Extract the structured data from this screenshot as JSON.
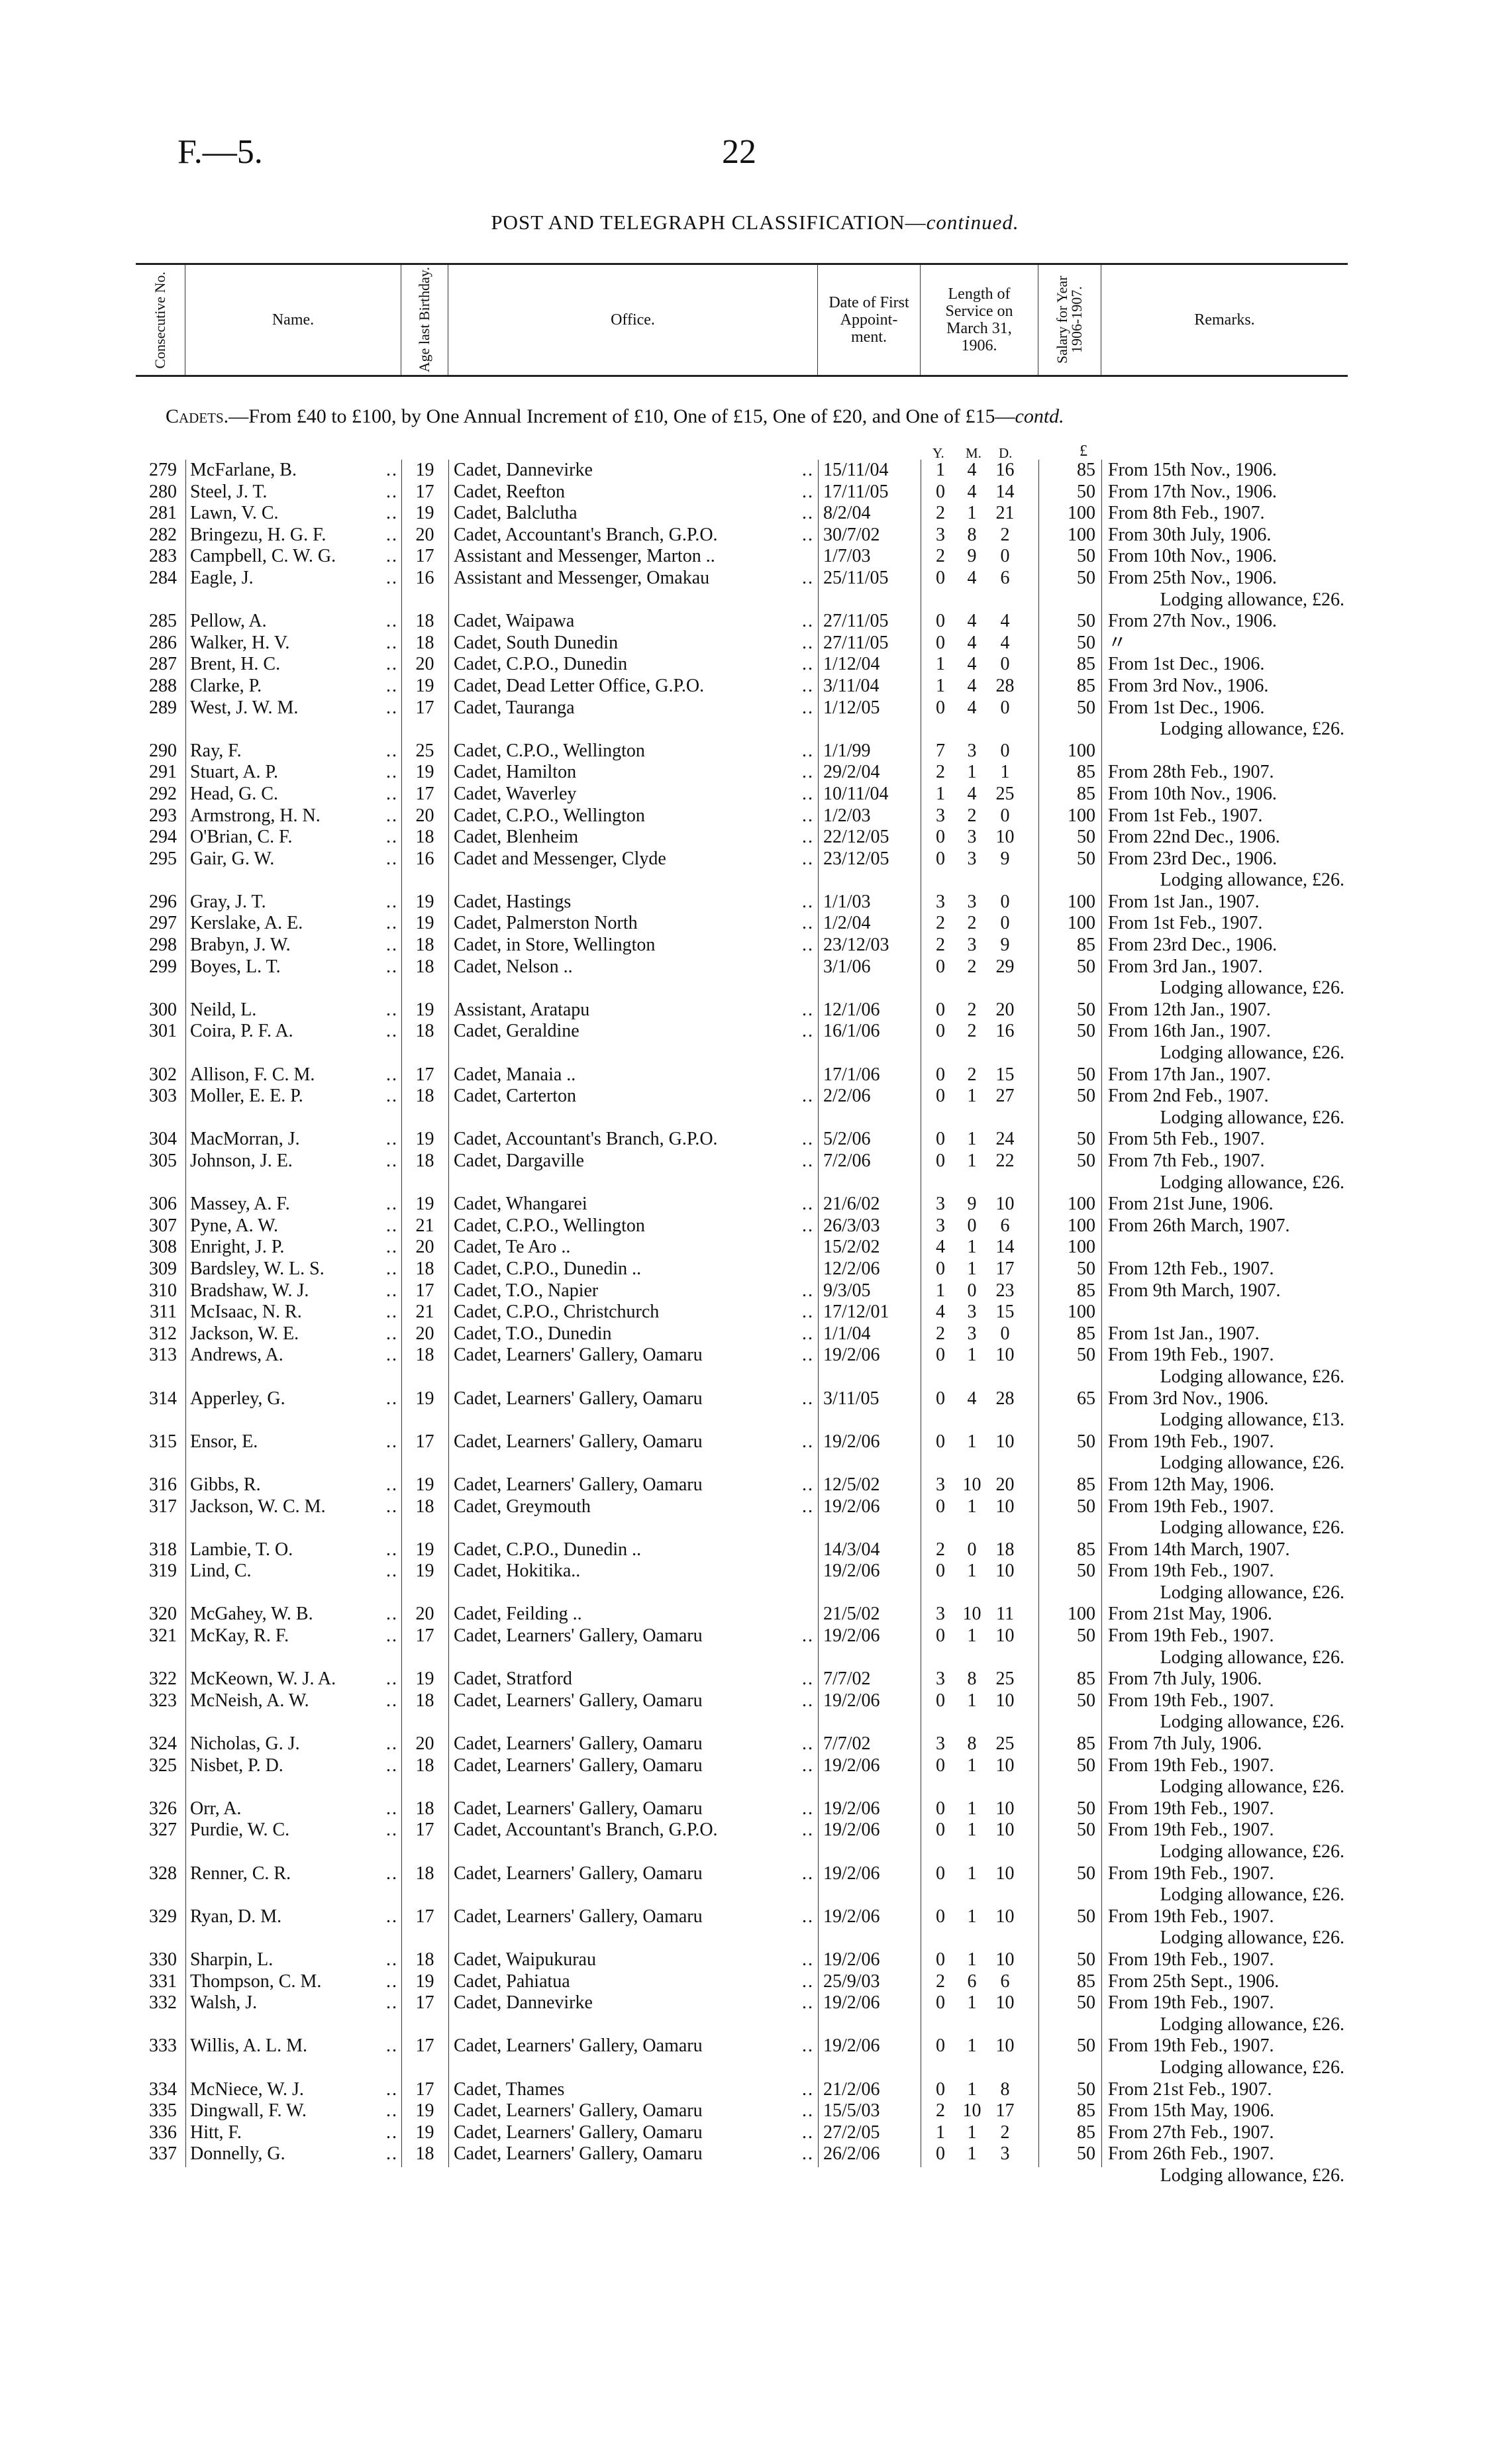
{
  "page": {
    "ref": "F.—5.",
    "number": "22"
  },
  "title": {
    "main": "POST AND TELEGRAPH CLASSIFICATION—",
    "suffix": "continued."
  },
  "columns": {
    "no": "Consecutive No.",
    "name": "Name.",
    "age": "Age last Birthday.",
    "office": "Office.",
    "date": "Date of First Appoint-ment.",
    "length": "Length of Service on March 31, 1906.",
    "salary": "Salary for Year 1906-1907.",
    "remarks": "Remarks."
  },
  "section": {
    "label": "Cadets.",
    "text": "—From £40 to £100, by One Annual Increment of £10, One of £15, One of £20, and One of £15—",
    "suffix": "contd."
  },
  "units": {
    "y": "Y.",
    "m": "M.",
    "d": "D.",
    "pound": "£"
  },
  "rows": [
    {
      "no": "279",
      "name": "McFarlane, B.",
      "age": "19",
      "office": "Cadet, Dannevirke",
      "date": "15/11/04",
      "y": "1",
      "m": "4",
      "d": "16",
      "salary": "85",
      "remarks": "From 15th Nov., 1906."
    },
    {
      "no": "280",
      "name": "Steel, J. T.",
      "age": "17",
      "office": "Cadet, Reefton",
      "date": "17/11/05",
      "y": "0",
      "m": "4",
      "d": "14",
      "salary": "50",
      "remarks": "From 17th Nov., 1906."
    },
    {
      "no": "281",
      "name": "Lawn, V. C.",
      "age": "19",
      "office": "Cadet, Balclutha",
      "date": "8/2/04",
      "y": "2",
      "m": "1",
      "d": "21",
      "salary": "100",
      "remarks": "From 8th Feb., 1907."
    },
    {
      "no": "282",
      "name": "Bringezu, H. G. F.",
      "age": "20",
      "office": "Cadet, Accountant's Branch, G.P.O.",
      "date": "30/7/02",
      "y": "3",
      "m": "8",
      "d": "2",
      "salary": "100",
      "remarks": "From 30th July, 1906."
    },
    {
      "no": "283",
      "name": "Campbell, C. W. G.",
      "age": "17",
      "office": "Assistant and Messenger, Marton ..",
      "date": "1/7/03",
      "y": "2",
      "m": "9",
      "d": "0",
      "salary": "50",
      "remarks": "From 10th Nov., 1906."
    },
    {
      "no": "284",
      "name": "Eagle, J.",
      "age": "16",
      "office": "Assistant and Messenger, Omakau",
      "date": "25/11/05",
      "y": "0",
      "m": "4",
      "d": "6",
      "salary": "50",
      "remarks": "From 25th Nov., 1906.",
      "lodging": "Lodging allowance, £26."
    },
    {
      "no": "285",
      "name": "Pellow, A.",
      "age": "18",
      "office": "Cadet, Waipawa",
      "date": "27/11/05",
      "y": "0",
      "m": "4",
      "d": "4",
      "salary": "50",
      "remarks": "From 27th Nov., 1906."
    },
    {
      "no": "286",
      "name": "Walker, H. V.",
      "age": "18",
      "office": "Cadet, South Dunedin",
      "date": "27/11/05",
      "y": "0",
      "m": "4",
      "d": "4",
      "salary": "50",
      "remarks": "〃"
    },
    {
      "no": "287",
      "name": "Brent, H. C.",
      "age": "20",
      "office": "Cadet, C.P.O., Dunedin",
      "date": "1/12/04",
      "y": "1",
      "m": "4",
      "d": "0",
      "salary": "85",
      "remarks": "From 1st Dec., 1906."
    },
    {
      "no": "288",
      "name": "Clarke, P.",
      "age": "19",
      "office": "Cadet, Dead Letter Office, G.P.O.",
      "date": "3/11/04",
      "y": "1",
      "m": "4",
      "d": "28",
      "salary": "85",
      "remarks": "From 3rd Nov., 1906."
    },
    {
      "no": "289",
      "name": "West, J. W. M.",
      "age": "17",
      "office": "Cadet, Tauranga",
      "date": "1/12/05",
      "y": "0",
      "m": "4",
      "d": "0",
      "salary": "50",
      "remarks": "From 1st Dec., 1906.",
      "lodging": "Lodging allowance, £26."
    },
    {
      "no": "290",
      "name": "Ray, F.",
      "age": "25",
      "office": "Cadet, C.P.O., Wellington",
      "date": "1/1/99",
      "y": "7",
      "m": "3",
      "d": "0",
      "salary": "100",
      "remarks": ""
    },
    {
      "no": "291",
      "name": "Stuart, A. P.",
      "age": "19",
      "office": "Cadet, Hamilton",
      "date": "29/2/04",
      "y": "2",
      "m": "1",
      "d": "1",
      "salary": "85",
      "remarks": "From 28th Feb., 1907."
    },
    {
      "no": "292",
      "name": "Head, G. C.",
      "age": "17",
      "office": "Cadet, Waverley",
      "date": "10/11/04",
      "y": "1",
      "m": "4",
      "d": "25",
      "salary": "85",
      "remarks": "From 10th Nov., 1906."
    },
    {
      "no": "293",
      "name": "Armstrong, H. N.",
      "age": "20",
      "office": "Cadet, C.P.O., Wellington",
      "date": "1/2/03",
      "y": "3",
      "m": "2",
      "d": "0",
      "salary": "100",
      "remarks": "From 1st Feb., 1907."
    },
    {
      "no": "294",
      "name": "O'Brian, C. F.",
      "age": "18",
      "office": "Cadet, Blenheim",
      "date": "22/12/05",
      "y": "0",
      "m": "3",
      "d": "10",
      "salary": "50",
      "remarks": "From 22nd Dec., 1906."
    },
    {
      "no": "295",
      "name": "Gair, G. W.",
      "age": "16",
      "office": "Cadet and Messenger, Clyde",
      "date": "23/12/05",
      "y": "0",
      "m": "3",
      "d": "9",
      "salary": "50",
      "remarks": "From 23rd Dec., 1906.",
      "lodging": "Lodging allowance, £26."
    },
    {
      "no": "296",
      "name": "Gray, J. T.",
      "age": "19",
      "office": "Cadet, Hastings",
      "date": "1/1/03",
      "y": "3",
      "m": "3",
      "d": "0",
      "salary": "100",
      "remarks": "From 1st Jan., 1907."
    },
    {
      "no": "297",
      "name": "Kerslake, A. E.",
      "age": "19",
      "office": "Cadet, Palmerston North",
      "date": "1/2/04",
      "y": "2",
      "m": "2",
      "d": "0",
      "salary": "100",
      "remarks": "From 1st Feb., 1907."
    },
    {
      "no": "298",
      "name": "Brabyn, J. W.",
      "age": "18",
      "office": "Cadet, in Store, Wellington",
      "date": "23/12/03",
      "y": "2",
      "m": "3",
      "d": "9",
      "salary": "85",
      "remarks": "From 23rd Dec., 1906."
    },
    {
      "no": "299",
      "name": "Boyes, L. T.",
      "age": "18",
      "office": "Cadet, Nelson ..",
      "date": "3/1/06",
      "y": "0",
      "m": "2",
      "d": "29",
      "salary": "50",
      "remarks": "From 3rd Jan., 1907.",
      "lodging": "Lodging allowance, £26."
    },
    {
      "no": "300",
      "name": "Neild, L.",
      "age": "19",
      "office": "Assistant, Aratapu",
      "date": "12/1/06",
      "y": "0",
      "m": "2",
      "d": "20",
      "salary": "50",
      "remarks": "From 12th Jan., 1907."
    },
    {
      "no": "301",
      "name": "Coira, P. F. A.",
      "age": "18",
      "office": "Cadet, Geraldine",
      "date": "16/1/06",
      "y": "0",
      "m": "2",
      "d": "16",
      "salary": "50",
      "remarks": "From 16th Jan., 1907.",
      "lodging": "Lodging allowance, £26."
    },
    {
      "no": "302",
      "name": "Allison, F. C. M.",
      "age": "17",
      "office": "Cadet, Manaia ..",
      "date": "17/1/06",
      "y": "0",
      "m": "2",
      "d": "15",
      "salary": "50",
      "remarks": "From 17th Jan., 1907."
    },
    {
      "no": "303",
      "name": "Moller, E. E. P.",
      "age": "18",
      "office": "Cadet, Carterton",
      "date": "2/2/06",
      "y": "0",
      "m": "1",
      "d": "27",
      "salary": "50",
      "remarks": "From 2nd Feb., 1907.",
      "lodging": "Lodging allowance, £26."
    },
    {
      "no": "304",
      "name": "MacMorran, J.",
      "age": "19",
      "office": "Cadet, Accountant's Branch, G.P.O.",
      "date": "5/2/06",
      "y": "0",
      "m": "1",
      "d": "24",
      "salary": "50",
      "remarks": "From 5th Feb., 1907."
    },
    {
      "no": "305",
      "name": "Johnson, J. E.",
      "age": "18",
      "office": "Cadet, Dargaville",
      "date": "7/2/06",
      "y": "0",
      "m": "1",
      "d": "22",
      "salary": "50",
      "remarks": "From 7th Feb., 1907.",
      "lodging": "Lodging allowance, £26."
    },
    {
      "no": "306",
      "name": "Massey, A. F.",
      "age": "19",
      "office": "Cadet, Whangarei",
      "date": "21/6/02",
      "y": "3",
      "m": "9",
      "d": "10",
      "salary": "100",
      "remarks": "From 21st June, 1906."
    },
    {
      "no": "307",
      "name": "Pyne, A. W.",
      "age": "21",
      "office": "Cadet, C.P.O., Wellington",
      "date": "26/3/03",
      "y": "3",
      "m": "0",
      "d": "6",
      "salary": "100",
      "remarks": "From 26th March, 1907."
    },
    {
      "no": "308",
      "name": "Enright, J. P.",
      "age": "20",
      "office": "Cadet, Te Aro ..",
      "date": "15/2/02",
      "y": "4",
      "m": "1",
      "d": "14",
      "salary": "100",
      "remarks": ""
    },
    {
      "no": "309",
      "name": "Bardsley, W. L. S.",
      "age": "18",
      "office": "Cadet, C.P.O., Dunedin ..",
      "date": "12/2/06",
      "y": "0",
      "m": "1",
      "d": "17",
      "salary": "50",
      "remarks": "From 12th Feb., 1907."
    },
    {
      "no": "310",
      "name": "Bradshaw, W. J.",
      "age": "17",
      "office": "Cadet, T.O., Napier",
      "date": "9/3/05",
      "y": "1",
      "m": "0",
      "d": "23",
      "salary": "85",
      "remarks": "From 9th March, 1907."
    },
    {
      "no": "311",
      "name": "McIsaac, N. R.",
      "age": "21",
      "office": "Cadet, C.P.O., Christchurch",
      "date": "17/12/01",
      "y": "4",
      "m": "3",
      "d": "15",
      "salary": "100",
      "remarks": ""
    },
    {
      "no": "312",
      "name": "Jackson, W. E.",
      "age": "20",
      "office": "Cadet, T.O., Dunedin",
      "date": "1/1/04",
      "y": "2",
      "m": "3",
      "d": "0",
      "salary": "85",
      "remarks": "From 1st Jan., 1907."
    },
    {
      "no": "313",
      "name": "Andrews, A.",
      "age": "18",
      "office": "Cadet, Learners' Gallery, Oamaru",
      "date": "19/2/06",
      "y": "0",
      "m": "1",
      "d": "10",
      "salary": "50",
      "remarks": "From 19th Feb., 1907.",
      "lodging": "Lodging allowance, £26."
    },
    {
      "no": "314",
      "name": "Apperley, G.",
      "age": "19",
      "office": "Cadet, Learners' Gallery, Oamaru",
      "date": "3/11/05",
      "y": "0",
      "m": "4",
      "d": "28",
      "salary": "65",
      "remarks": "From 3rd Nov., 1906.",
      "lodging": "Lodging allowance, £13."
    },
    {
      "no": "315",
      "name": "Ensor, E.",
      "age": "17",
      "office": "Cadet, Learners' Gallery, Oamaru",
      "date": "19/2/06",
      "y": "0",
      "m": "1",
      "d": "10",
      "salary": "50",
      "remarks": "From 19th Feb., 1907.",
      "lodging": "Lodging allowance, £26."
    },
    {
      "no": "316",
      "name": "Gibbs, R.",
      "age": "19",
      "office": "Cadet, Learners' Gallery, Oamaru",
      "date": "12/5/02",
      "y": "3",
      "m": "10",
      "d": "20",
      "salary": "85",
      "remarks": "From 12th May, 1906."
    },
    {
      "no": "317",
      "name": "Jackson, W. C. M.",
      "age": "18",
      "office": "Cadet, Greymouth",
      "date": "19/2/06",
      "y": "0",
      "m": "1",
      "d": "10",
      "salary": "50",
      "remarks": "From 19th Feb., 1907.",
      "lodging": "Lodging allowance, £26."
    },
    {
      "no": "318",
      "name": "Lambie, T. O.",
      "age": "19",
      "office": "Cadet, C.P.O., Dunedin ..",
      "date": "14/3/04",
      "y": "2",
      "m": "0",
      "d": "18",
      "salary": "85",
      "remarks": "From 14th March, 1907."
    },
    {
      "no": "319",
      "name": "Lind, C.",
      "age": "19",
      "office": "Cadet, Hokitika..",
      "date": "19/2/06",
      "y": "0",
      "m": "1",
      "d": "10",
      "salary": "50",
      "remarks": "From 19th Feb., 1907.",
      "lodging": "Lodging allowance, £26."
    },
    {
      "no": "320",
      "name": "McGahey, W. B.",
      "age": "20",
      "office": "Cadet, Feilding ..",
      "date": "21/5/02",
      "y": "3",
      "m": "10",
      "d": "11",
      "salary": "100",
      "remarks": "From 21st May, 1906."
    },
    {
      "no": "321",
      "name": "McKay, R. F.",
      "age": "17",
      "office": "Cadet, Learners' Gallery, Oamaru",
      "date": "19/2/06",
      "y": "0",
      "m": "1",
      "d": "10",
      "salary": "50",
      "remarks": "From 19th Feb., 1907.",
      "lodging": "Lodging allowance, £26."
    },
    {
      "no": "322",
      "name": "McKeown, W. J. A.",
      "age": "19",
      "office": "Cadet, Stratford",
      "date": "7/7/02",
      "y": "3",
      "m": "8",
      "d": "25",
      "salary": "85",
      "remarks": "From 7th July, 1906."
    },
    {
      "no": "323",
      "name": "McNeish, A. W.",
      "age": "18",
      "office": "Cadet, Learners' Gallery, Oamaru",
      "date": "19/2/06",
      "y": "0",
      "m": "1",
      "d": "10",
      "salary": "50",
      "remarks": "From 19th Feb., 1907.",
      "lodging": "Lodging allowance, £26."
    },
    {
      "no": "324",
      "name": "Nicholas, G. J.",
      "age": "20",
      "office": "Cadet, Learners' Gallery, Oamaru",
      "date": "7/7/02",
      "y": "3",
      "m": "8",
      "d": "25",
      "salary": "85",
      "remarks": "From 7th July, 1906."
    },
    {
      "no": "325",
      "name": "Nisbet, P. D.",
      "age": "18",
      "office": "Cadet, Learners' Gallery, Oamaru",
      "date": "19/2/06",
      "y": "0",
      "m": "1",
      "d": "10",
      "salary": "50",
      "remarks": "From 19th Feb., 1907.",
      "lodging": "Lodging allowance, £26."
    },
    {
      "no": "326",
      "name": "Orr, A.",
      "age": "18",
      "office": "Cadet, Learners' Gallery, Oamaru",
      "date": "19/2/06",
      "y": "0",
      "m": "1",
      "d": "10",
      "salary": "50",
      "remarks": "From 19th Feb., 1907."
    },
    {
      "no": "327",
      "name": "Purdie, W. C.",
      "age": "17",
      "office": "Cadet, Accountant's Branch, G.P.O.",
      "date": "19/2/06",
      "y": "0",
      "m": "1",
      "d": "10",
      "salary": "50",
      "remarks": "From 19th Feb., 1907.",
      "lodging": "Lodging allowance, £26."
    },
    {
      "no": "328",
      "name": "Renner, C. R.",
      "age": "18",
      "office": "Cadet, Learners' Gallery, Oamaru",
      "date": "19/2/06",
      "y": "0",
      "m": "1",
      "d": "10",
      "salary": "50",
      "remarks": "From 19th Feb., 1907.",
      "lodging": "Lodging allowance, £26."
    },
    {
      "no": "329",
      "name": "Ryan, D. M.",
      "age": "17",
      "office": "Cadet, Learners' Gallery, Oamaru",
      "date": "19/2/06",
      "y": "0",
      "m": "1",
      "d": "10",
      "salary": "50",
      "remarks": "From 19th Feb., 1907.",
      "lodging": "Lodging allowance, £26."
    },
    {
      "no": "330",
      "name": "Sharpin, L.",
      "age": "18",
      "office": "Cadet, Waipukurau",
      "date": "19/2/06",
      "y": "0",
      "m": "1",
      "d": "10",
      "salary": "50",
      "remarks": "From 19th Feb., 1907."
    },
    {
      "no": "331",
      "name": "Thompson, C. M.",
      "age": "19",
      "office": "Cadet, Pahiatua",
      "date": "25/9/03",
      "y": "2",
      "m": "6",
      "d": "6",
      "salary": "85",
      "remarks": "From 25th Sept., 1906."
    },
    {
      "no": "332",
      "name": "Walsh, J.",
      "age": "17",
      "office": "Cadet, Dannevirke",
      "date": "19/2/06",
      "y": "0",
      "m": "1",
      "d": "10",
      "salary": "50",
      "remarks": "From 19th Feb., 1907.",
      "lodging": "Lodging allowance, £26."
    },
    {
      "no": "333",
      "name": "Willis, A. L. M.",
      "age": "17",
      "office": "Cadet, Learners' Gallery, Oamaru",
      "date": "19/2/06",
      "y": "0",
      "m": "1",
      "d": "10",
      "salary": "50",
      "remarks": "From 19th Feb., 1907.",
      "lodging": "Lodging allowance, £26."
    },
    {
      "no": "334",
      "name": "McNiece, W. J.",
      "age": "17",
      "office": "Cadet, Thames",
      "date": "21/2/06",
      "y": "0",
      "m": "1",
      "d": "8",
      "salary": "50",
      "remarks": "From 21st Feb., 1907."
    },
    {
      "no": "335",
      "name": "Dingwall, F. W.",
      "age": "19",
      "office": "Cadet, Learners' Gallery, Oamaru",
      "date": "15/5/03",
      "y": "2",
      "m": "10",
      "d": "17",
      "salary": "85",
      "remarks": "From 15th May, 1906."
    },
    {
      "no": "336",
      "name": "Hitt, F.",
      "age": "19",
      "office": "Cadet, Learners' Gallery, Oamaru",
      "date": "27/2/05",
      "y": "1",
      "m": "1",
      "d": "2",
      "salary": "85",
      "remarks": "From 27th Feb., 1907."
    },
    {
      "no": "337",
      "name": "Donnelly, G.",
      "age": "18",
      "office": "Cadet, Learners' Gallery, Oamaru",
      "date": "26/2/06",
      "y": "0",
      "m": "1",
      "d": "3",
      "salary": "50",
      "remarks": "From 26th Feb., 1907.",
      "lodging": "Lodging allowance, £26."
    }
  ]
}
